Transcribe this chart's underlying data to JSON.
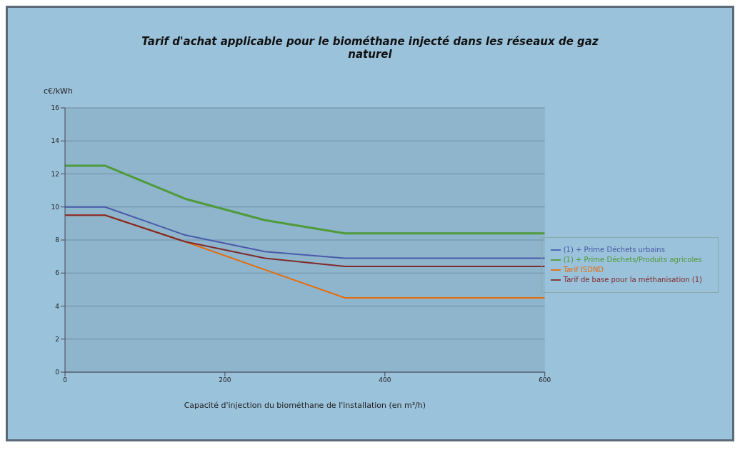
{
  "chart_data": {
    "type": "line",
    "title": "Tarif d'achat applicable pour le biométhane injecté dans les réseaux de gaz naturel",
    "xlabel": "Capacité d'injection du biométhane de l'installation (en m³/h)",
    "ylabel": "c€/kWh",
    "x": [
      0,
      50,
      150,
      250,
      350,
      600
    ],
    "series": [
      {
        "name": "Tarif ISDND",
        "color": "#e46c0a",
        "values": [
          9.5,
          9.5,
          7.9,
          6.2,
          4.5,
          4.5
        ]
      },
      {
        "name": "Tarif de base pour la méthanisation (1)",
        "color": "#7f2a2a",
        "values": [
          9.5,
          9.5,
          7.9,
          6.9,
          6.4,
          6.4
        ]
      },
      {
        "name": "(1) + Prime Déchets urbains",
        "color": "#4a5aa8",
        "values": [
          10,
          10,
          8.3,
          7.3,
          6.9,
          6.9
        ]
      },
      {
        "name": "(1) + Prime Déchets/Produits agricoles",
        "color": "#4f9a3a",
        "values": [
          12.5,
          12.5,
          10.5,
          9.2,
          8.4,
          8.4
        ]
      }
    ],
    "xlim": [
      0,
      600
    ],
    "xticks": [
      0,
      200,
      400,
      600
    ],
    "ylim": [
      0,
      16
    ],
    "yticks": [
      0,
      2,
      4,
      6,
      8,
      10,
      12,
      14,
      16
    ],
    "grid": "y",
    "legend": "right",
    "marker": "none",
    "line_style": "solid"
  }
}
